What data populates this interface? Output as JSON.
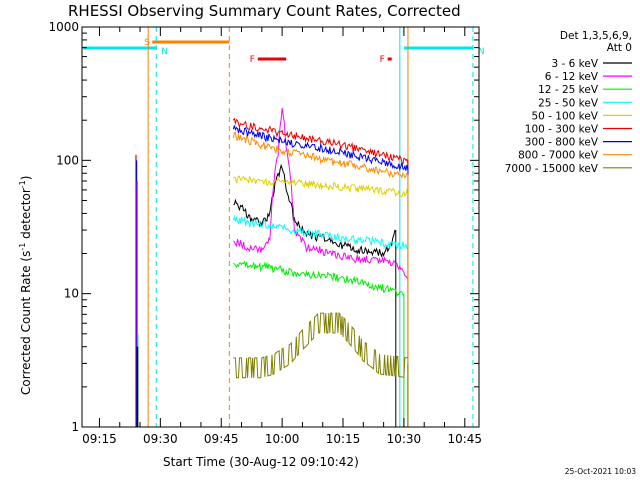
{
  "chart_data": {
    "type": "line",
    "title": "RHESSI Observing Summary Count Rates, Corrected",
    "xlabel": "Start Time (30-Aug-12 09:10:42)",
    "ylabel_main": "Corrected Count Rate (s",
    "ylabel_exp1": "-1",
    "ylabel_mid": " detector",
    "ylabel_exp2": "-1",
    "ylabel_end": ")",
    "yscale": "log",
    "ylim": [
      1,
      1000
    ],
    "xlim": [
      "09:10:42",
      "10:48:30"
    ],
    "x_ticks": [
      "09:15",
      "09:30",
      "09:45",
      "10:00",
      "10:15",
      "10:30",
      "10:45"
    ],
    "y_ticks": [
      "1",
      "10",
      "100",
      "1000"
    ],
    "legend_header": [
      "Det 1,3,5,6,9,",
      "Att 0"
    ],
    "legend_position": "right",
    "grid": false,
    "timestamp": "25-Oct-2021 10:03",
    "flags": [
      {
        "label": "S",
        "start": "09:28",
        "end": "09:47",
        "color": "#ff7f00"
      },
      {
        "label": "N",
        "start": "09:11",
        "end": "09:29",
        "color": "#00e5ee"
      },
      {
        "label": "N",
        "start": "10:30",
        "end": "10:47",
        "color": "#00e5ee"
      },
      {
        "label": "F",
        "start": "09:54",
        "end": "10:01",
        "color": "#ee0000"
      },
      {
        "label": "F",
        "start": "10:26",
        "end": "10:27",
        "color": "#ee0000"
      }
    ],
    "vlines": [
      {
        "time": "09:27",
        "color": "#ff7f00",
        "style": "solid"
      },
      {
        "time": "09:29",
        "color": "#00e5ee",
        "style": "dashed"
      },
      {
        "time": "09:47",
        "color": "#ff7f00",
        "style": "dashed"
      },
      {
        "time": "10:29",
        "color": "#00e5ee",
        "style": "solid"
      },
      {
        "time": "10:31",
        "color": "#ff7f00",
        "style": "solid"
      },
      {
        "time": "10:47",
        "color": "#00e5ee",
        "style": "dashed"
      }
    ],
    "series": [
      {
        "name": "3 - 6 keV",
        "color": "#000000",
        "points": [
          [
            "09:48",
            50
          ],
          [
            "09:52",
            38
          ],
          [
            "09:55",
            33
          ],
          [
            "09:57",
            40
          ],
          [
            "09:59",
            78
          ],
          [
            "10:00",
            90
          ],
          [
            "10:01",
            62
          ],
          [
            "10:03",
            35
          ],
          [
            "10:06",
            28
          ],
          [
            "10:10",
            26
          ],
          [
            "10:15",
            23
          ],
          [
            "10:20",
            21
          ],
          [
            "10:25",
            20
          ],
          [
            "10:27",
            24
          ],
          [
            "10:28",
            30
          ]
        ]
      },
      {
        "name": "6 - 12 keV",
        "color": "#ff00ff",
        "points": [
          [
            "09:48",
            25
          ],
          [
            "09:52",
            22
          ],
          [
            "09:55",
            21
          ],
          [
            "09:57",
            25
          ],
          [
            "09:59",
            110
          ],
          [
            "10:00",
            250
          ],
          [
            "10:01",
            120
          ],
          [
            "10:03",
            30
          ],
          [
            "10:06",
            22
          ],
          [
            "10:10",
            21
          ],
          [
            "10:15",
            19
          ],
          [
            "10:20",
            18
          ],
          [
            "10:25",
            18
          ],
          [
            "10:29",
            16
          ],
          [
            "10:31",
            13
          ]
        ]
      },
      {
        "name": "12 - 25 keV",
        "color": "#00ee00",
        "points": [
          [
            "09:48",
            17
          ],
          [
            "09:52",
            16
          ],
          [
            "09:56",
            16
          ],
          [
            "10:00",
            15
          ],
          [
            "10:05",
            14
          ],
          [
            "10:10",
            14
          ],
          [
            "10:15",
            13
          ],
          [
            "10:20",
            12
          ],
          [
            "10:25",
            11
          ],
          [
            "10:30",
            10
          ]
        ]
      },
      {
        "name": "25 - 50 keV",
        "color": "#00ffff",
        "points": [
          [
            "09:48",
            37
          ],
          [
            "09:52",
            34
          ],
          [
            "09:56",
            33
          ],
          [
            "10:00",
            31
          ],
          [
            "10:05",
            29
          ],
          [
            "10:10",
            28
          ],
          [
            "10:15",
            26
          ],
          [
            "10:20",
            25
          ],
          [
            "10:25",
            24
          ],
          [
            "10:31",
            23
          ]
        ]
      },
      {
        "name": "50 - 100 keV",
        "color": "#e0d000",
        "points": [
          [
            "09:48",
            72
          ],
          [
            "09:52",
            71
          ],
          [
            "09:56",
            70
          ],
          [
            "10:00",
            69
          ],
          [
            "10:05",
            67
          ],
          [
            "10:10",
            65
          ],
          [
            "10:15",
            63
          ],
          [
            "10:20",
            61
          ],
          [
            "10:25",
            59
          ],
          [
            "10:31",
            56
          ]
        ]
      },
      {
        "name": "100 - 300 keV",
        "color": "#ee0000",
        "points": [
          [
            "09:48",
            195
          ],
          [
            "09:52",
            180
          ],
          [
            "09:56",
            170
          ],
          [
            "10:00",
            160
          ],
          [
            "10:05",
            150
          ],
          [
            "10:10",
            140
          ],
          [
            "10:15",
            130
          ],
          [
            "10:20",
            118
          ],
          [
            "10:25",
            108
          ],
          [
            "10:31",
            100
          ]
        ]
      },
      {
        "name": "300 - 800 keV",
        "color": "#0000ee",
        "points": [
          [
            "09:48",
            175
          ],
          [
            "09:52",
            160
          ],
          [
            "09:56",
            150
          ],
          [
            "10:00",
            140
          ],
          [
            "10:05",
            130
          ],
          [
            "10:10",
            122
          ],
          [
            "10:15",
            114
          ],
          [
            "10:20",
            105
          ],
          [
            "10:25",
            96
          ],
          [
            "10:31",
            88
          ]
        ]
      },
      {
        "name": "800 - 7000 keV",
        "color": "#ff8c00",
        "points": [
          [
            "09:48",
            155
          ],
          [
            "09:52",
            140
          ],
          [
            "09:56",
            128
          ],
          [
            "10:00",
            118
          ],
          [
            "10:05",
            110
          ],
          [
            "10:10",
            102
          ],
          [
            "10:15",
            95
          ],
          [
            "10:20",
            88
          ],
          [
            "10:25",
            82
          ],
          [
            "10:31",
            78
          ]
        ]
      },
      {
        "name": "7000 - 15000 keV",
        "color": "#808000",
        "points": [
          [
            "09:48",
            3
          ],
          [
            "09:55",
            3
          ],
          [
            "09:58",
            3.2
          ],
          [
            "10:02",
            3.8
          ],
          [
            "10:06",
            5.2
          ],
          [
            "10:09",
            6.5
          ],
          [
            "10:14",
            6.5
          ],
          [
            "10:17",
            5.2
          ],
          [
            "10:20",
            4
          ],
          [
            "10:24",
            3.2
          ],
          [
            "10:31",
            3
          ]
        ]
      }
    ],
    "pre_spikes": [
      {
        "time": "09:24",
        "values": [
          110,
          100,
          70,
          5
        ]
      }
    ]
  }
}
